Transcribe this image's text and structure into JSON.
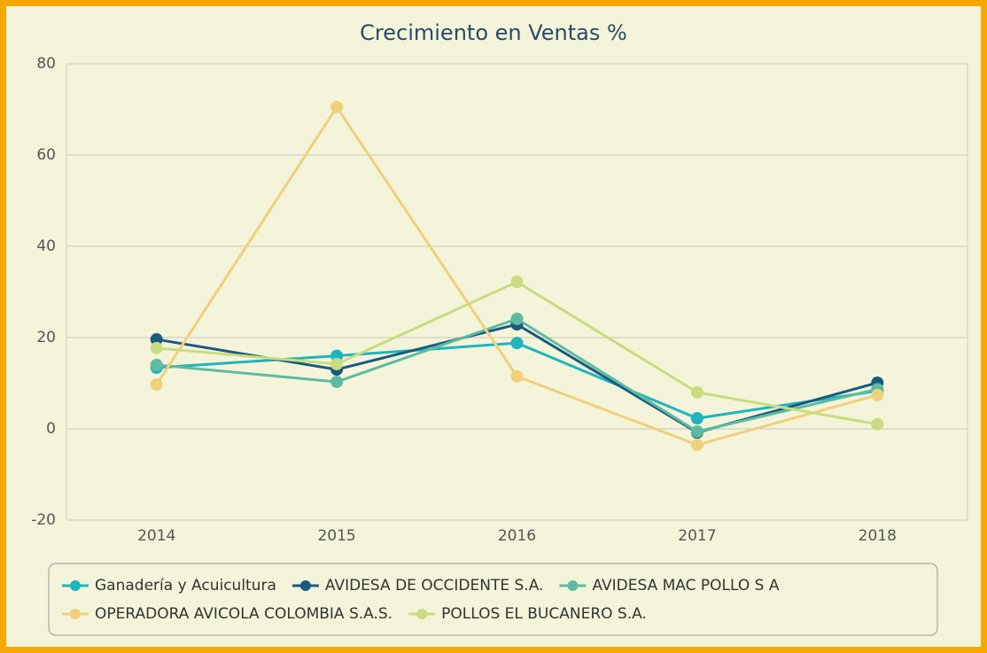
{
  "chart_data": {
    "type": "line",
    "title": "Crecimiento en Ventas %",
    "categories": [
      "2014",
      "2015",
      "2016",
      "2017",
      "2018"
    ],
    "series": [
      {
        "name": "Ganadería y Acuicultura",
        "color": "#1eb5bf",
        "values": [
          13.4,
          16,
          18.8,
          2.3,
          8.3
        ]
      },
      {
        "name": "AVIDESA DE OCCIDENTE S.A.",
        "color": "#1b5a7e",
        "values": [
          19.6,
          13,
          22.9,
          -0.8,
          10.1
        ]
      },
      {
        "name": "AVIDESA MAC POLLO S A",
        "color": "#5dbba1",
        "values": [
          14,
          10.3,
          24.1,
          -0.6,
          8.7
        ]
      },
      {
        "name": "OPERADORA AVICOLA COLOMBIA S.A.S.",
        "color": "#f1d07c",
        "values": [
          9.7,
          70.5,
          11.5,
          -3.5,
          7.4
        ]
      },
      {
        "name": "POLLOS EL BUCANERO S.A.",
        "color": "#c9dc80",
        "values": [
          17.7,
          14.2,
          32.2,
          8,
          1
        ]
      }
    ],
    "ylim": [
      -20,
      80
    ],
    "yticks": [
      -20,
      0,
      20,
      40,
      60,
      80
    ],
    "grid": true
  }
}
